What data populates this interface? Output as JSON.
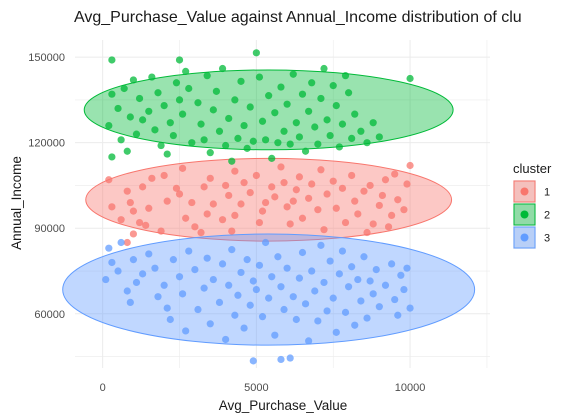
{
  "chart_data": {
    "type": "scatter",
    "title": "Avg_Purchase_Value against Annual_Income distribution of clu",
    "xlabel": "Avg_Purchase_Value",
    "ylabel": "Annual_Income",
    "xlim": [
      -900,
      12600
    ],
    "ylim": [
      41000,
      156000
    ],
    "x_ticks": [
      0,
      5000,
      10000
    ],
    "x_tick_labels": [
      "0",
      "5000",
      "10000"
    ],
    "y_ticks": [
      60000,
      90000,
      120000,
      150000
    ],
    "y_tick_labels": [
      "60000",
      "90000",
      "120000",
      "150000"
    ],
    "grid": true,
    "legend": {
      "title": "cluster",
      "position": "right"
    },
    "series": [
      {
        "name": "1",
        "color": "#F8766D",
        "ellipse": {
          "cx": 5400,
          "cy": 100000,
          "rx": 5950,
          "ry": 14500
        },
        "points": [
          [
            1000,
            96000
          ],
          [
            600,
            93000
          ],
          [
            300,
            97500
          ],
          [
            200,
            107000
          ],
          [
            800,
            103000
          ],
          [
            900,
            99000
          ],
          [
            1300,
            104500
          ],
          [
            1600,
            107500
          ],
          [
            1500,
            97000
          ],
          [
            1200,
            92000
          ],
          [
            1900,
            89000
          ],
          [
            1000,
            88000
          ],
          [
            2100,
            99500
          ],
          [
            2500,
            102000
          ],
          [
            2000,
            108500
          ],
          [
            2700,
            93500
          ],
          [
            2400,
            104000
          ],
          [
            2600,
            111000
          ],
          [
            2900,
            99000
          ],
          [
            3000,
            90500
          ],
          [
            3400,
            95000
          ],
          [
            3300,
            104500
          ],
          [
            3500,
            107500
          ],
          [
            3600,
            98500
          ],
          [
            3900,
            93000
          ],
          [
            4100,
            101500
          ],
          [
            3200,
            88500
          ],
          [
            4300,
            110000
          ],
          [
            4000,
            105000
          ],
          [
            4500,
            98500
          ],
          [
            4600,
            106000
          ],
          [
            4800,
            102500
          ],
          [
            4300,
            94500
          ],
          [
            4200,
            89000
          ],
          [
            5000,
            108500
          ],
          [
            5100,
            92000
          ],
          [
            5300,
            99000
          ],
          [
            5500,
            104500
          ],
          [
            5200,
            96000
          ],
          [
            5800,
            111500
          ],
          [
            5600,
            101000
          ],
          [
            5900,
            106000
          ],
          [
            6100,
            91500
          ],
          [
            6000,
            97500
          ],
          [
            6200,
            99500
          ],
          [
            6400,
            108000
          ],
          [
            6300,
            103500
          ],
          [
            6500,
            93500
          ],
          [
            6700,
            100500
          ],
          [
            6800,
            105500
          ],
          [
            7000,
            96500
          ],
          [
            7100,
            110500
          ],
          [
            7300,
            102000
          ],
          [
            7200,
            89500
          ],
          [
            7500,
            106500
          ],
          [
            7600,
            97000
          ],
          [
            7800,
            104000
          ],
          [
            7900,
            92000
          ],
          [
            8100,
            108500
          ],
          [
            8200,
            99500
          ],
          [
            8300,
            95000
          ],
          [
            8500,
            103000
          ],
          [
            8700,
            105000
          ],
          [
            8800,
            91500
          ],
          [
            9000,
            98000
          ],
          [
            9200,
            107000
          ],
          [
            9100,
            101500
          ],
          [
            9400,
            94500
          ],
          [
            9500,
            109000
          ],
          [
            9600,
            100000
          ],
          [
            9800,
            96500
          ],
          [
            9900,
            105500
          ],
          [
            10000,
            112000
          ],
          [
            9300,
            90500
          ],
          [
            8600,
            88500
          ],
          [
            800,
            85000
          ],
          [
            1400,
            91000
          ]
        ]
      },
      {
        "name": "2",
        "color": "#00BA38",
        "ellipse": {
          "cx": 5400,
          "cy": 131500,
          "rx": 6000,
          "ry": 14000
        },
        "points": [
          [
            300,
            149000
          ],
          [
            300,
            137000
          ],
          [
            700,
            139000
          ],
          [
            500,
            132000
          ],
          [
            900,
            129000
          ],
          [
            200,
            126000
          ],
          [
            600,
            121000
          ],
          [
            1000,
            142000
          ],
          [
            1200,
            135500
          ],
          [
            1300,
            128000
          ],
          [
            1100,
            123000
          ],
          [
            800,
            117000
          ],
          [
            300,
            115000
          ],
          [
            1600,
            143000
          ],
          [
            1500,
            131000
          ],
          [
            1700,
            124500
          ],
          [
            1800,
            137500
          ],
          [
            2000,
            133000
          ],
          [
            1900,
            119000
          ],
          [
            2200,
            127000
          ],
          [
            2100,
            116000
          ],
          [
            2400,
            141000
          ],
          [
            2500,
            135000
          ],
          [
            2300,
            122500
          ],
          [
            2600,
            130000
          ],
          [
            2700,
            145000
          ],
          [
            2800,
            139000
          ],
          [
            2900,
            120000
          ],
          [
            2500,
            149000
          ],
          [
            3100,
            134000
          ],
          [
            3200,
            126500
          ],
          [
            3300,
            121000
          ],
          [
            3400,
            143500
          ],
          [
            3500,
            116500
          ],
          [
            3600,
            131500
          ],
          [
            3700,
            138000
          ],
          [
            3800,
            124000
          ],
          [
            3900,
            146000
          ],
          [
            4000,
            119000
          ],
          [
            4100,
            128500
          ],
          [
            4200,
            113500
          ],
          [
            4300,
            135000
          ],
          [
            4400,
            121500
          ],
          [
            4500,
            141500
          ],
          [
            4600,
            126000
          ],
          [
            4700,
            118000
          ],
          [
            4800,
            132500
          ],
          [
            4900,
            120500
          ],
          [
            5000,
            151500
          ],
          [
            5100,
            143000
          ],
          [
            5200,
            127500
          ],
          [
            5300,
            121000
          ],
          [
            5400,
            136500
          ],
          [
            5500,
            114500
          ],
          [
            5600,
            130500
          ],
          [
            5700,
            120000
          ],
          [
            5800,
            139500
          ],
          [
            5900,
            124000
          ],
          [
            6000,
            133500
          ],
          [
            6100,
            119500
          ],
          [
            6200,
            144000
          ],
          [
            6300,
            127000
          ],
          [
            6400,
            122000
          ],
          [
            6500,
            137000
          ],
          [
            6600,
            117000
          ],
          [
            6700,
            131000
          ],
          [
            6800,
            141000
          ],
          [
            6900,
            125500
          ],
          [
            7000,
            119500
          ],
          [
            7100,
            135500
          ],
          [
            7200,
            146000
          ],
          [
            7300,
            128000
          ],
          [
            7400,
            122500
          ],
          [
            7500,
            140000
          ],
          [
            7600,
            133000
          ],
          [
            7700,
            118500
          ],
          [
            7800,
            126500
          ],
          [
            7900,
            143500
          ],
          [
            8000,
            137500
          ],
          [
            8100,
            121500
          ],
          [
            8200,
            130000
          ],
          [
            8400,
            124000
          ],
          [
            8600,
            120000
          ],
          [
            8800,
            127000
          ],
          [
            9000,
            122000
          ],
          [
            10000,
            142500
          ]
        ]
      },
      {
        "name": "3",
        "color": "#619CFF",
        "ellipse": {
          "cx": 5400,
          "cy": 68500,
          "rx": 6700,
          "ry": 19500
        },
        "points": [
          [
            200,
            83000
          ],
          [
            300,
            78000
          ],
          [
            100,
            72000
          ],
          [
            500,
            75000
          ],
          [
            800,
            68000
          ],
          [
            600,
            85000
          ],
          [
            1000,
            79000
          ],
          [
            1100,
            71000
          ],
          [
            1300,
            74000
          ],
          [
            900,
            64000
          ],
          [
            1500,
            81000
          ],
          [
            1700,
            76000
          ],
          [
            1800,
            66000
          ],
          [
            2000,
            70000
          ],
          [
            2100,
            62000
          ],
          [
            2300,
            79000
          ],
          [
            2200,
            58000
          ],
          [
            2500,
            73000
          ],
          [
            2600,
            67000
          ],
          [
            2800,
            82000
          ],
          [
            2700,
            54000
          ],
          [
            3000,
            75500
          ],
          [
            3100,
            61500
          ],
          [
            3300,
            69000
          ],
          [
            3400,
            79500
          ],
          [
            3500,
            56500
          ],
          [
            3600,
            72000
          ],
          [
            3800,
            64000
          ],
          [
            3900,
            77500
          ],
          [
            4000,
            51000
          ],
          [
            4100,
            70000
          ],
          [
            4200,
            82500
          ],
          [
            4300,
            59500
          ],
          [
            4400,
            66500
          ],
          [
            4500,
            74500
          ],
          [
            4600,
            55000
          ],
          [
            4700,
            79000
          ],
          [
            4800,
            63000
          ],
          [
            4900,
            71500
          ],
          [
            5000,
            68500
          ],
          [
            5100,
            77000
          ],
          [
            5200,
            59000
          ],
          [
            5300,
            85000
          ],
          [
            5400,
            65500
          ],
          [
            5500,
            73000
          ],
          [
            5600,
            52500
          ],
          [
            5700,
            80000
          ],
          [
            5800,
            69500
          ],
          [
            5900,
            61500
          ],
          [
            6000,
            76000
          ],
          [
            6100,
            44500
          ],
          [
            6200,
            66000
          ],
          [
            6300,
            58000
          ],
          [
            6400,
            72500
          ],
          [
            6500,
            81500
          ],
          [
            6600,
            63500
          ],
          [
            6700,
            50500
          ],
          [
            6800,
            75000
          ],
          [
            6900,
            68000
          ],
          [
            7000,
            57500
          ],
          [
            7100,
            84000
          ],
          [
            7200,
            71000
          ],
          [
            7300,
            61000
          ],
          [
            7400,
            78500
          ],
          [
            7500,
            65500
          ],
          [
            7600,
            53500
          ],
          [
            7700,
            74000
          ],
          [
            7800,
            82000
          ],
          [
            7900,
            60500
          ],
          [
            8000,
            69500
          ],
          [
            8100,
            76500
          ],
          [
            8200,
            56000
          ],
          [
            8300,
            72000
          ],
          [
            8400,
            64500
          ],
          [
            8500,
            80000
          ],
          [
            8600,
            58500
          ],
          [
            8700,
            71500
          ],
          [
            8800,
            67000
          ],
          [
            8900,
            75500
          ],
          [
            9000,
            62500
          ],
          [
            9200,
            70000
          ],
          [
            9400,
            77500
          ],
          [
            9500,
            65000
          ],
          [
            9600,
            59500
          ],
          [
            9700,
            73500
          ],
          [
            9800,
            68500
          ],
          [
            9900,
            76000
          ],
          [
            10000,
            62000
          ],
          [
            4900,
            43500
          ],
          [
            5800,
            44000
          ]
        ]
      }
    ]
  }
}
